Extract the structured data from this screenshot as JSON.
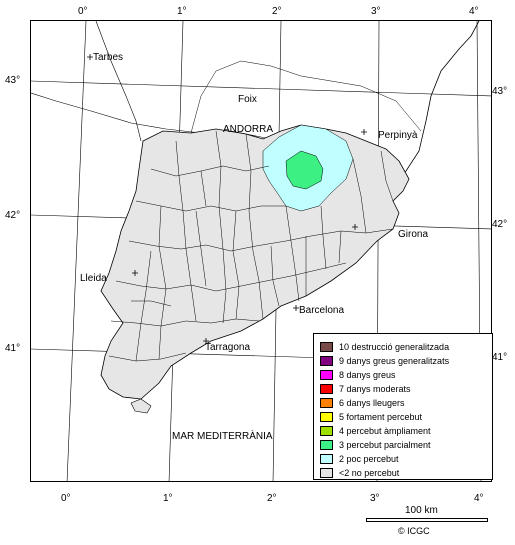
{
  "map": {
    "top_axis_labels": [
      "0°",
      "1°",
      "2°",
      "3°",
      "4°"
    ],
    "bottom_axis_labels": [
      "0°",
      "1°",
      "2°",
      "3°",
      "4°"
    ],
    "left_axis_labels": [
      "43°",
      "42°",
      "41°"
    ],
    "right_axis_labels": [
      "43°",
      "42°",
      "41°"
    ],
    "places": {
      "tarbes": "Tarbes",
      "foix": "Foix",
      "andorra": "ANDORRA",
      "perpinya": "Perpinyà",
      "girona": "Girona",
      "lleida": "Lleida",
      "barcelona": "Barcelona",
      "tarragona": "Tarragona",
      "sea": "MAR MEDITERRÀNIA"
    },
    "colors": {
      "land_catalonia": "#e6e6e6",
      "outside_land": "#ffffff",
      "intensity_2": "#c0ffff",
      "intensity_3": "#3cf084"
    }
  },
  "legend": {
    "items": [
      {
        "label": "10 destrucció generalitzada",
        "color": "#7a4a48"
      },
      {
        "label": "9 danys greus generalitzats",
        "color": "#800080"
      },
      {
        "label": "8 danys greus",
        "color": "#ff00ff"
      },
      {
        "label": "7 danys moderats",
        "color": "#ff0000"
      },
      {
        "label": "6 danys lleugers",
        "color": "#ff8000"
      },
      {
        "label": "5 fortament percebut",
        "color": "#ffff00"
      },
      {
        "label": "4 percebut àmpliament",
        "color": "#a0e000"
      },
      {
        "label": "3 percebut parcialment",
        "color": "#3cf084"
      },
      {
        "label": "2 poc percebut",
        "color": "#c0ffff"
      },
      {
        "label": "<2 no percebut",
        "color": "#e6e6e6"
      }
    ]
  },
  "scale": {
    "label": "100 km"
  },
  "credit": {
    "text": "© ICGC"
  }
}
